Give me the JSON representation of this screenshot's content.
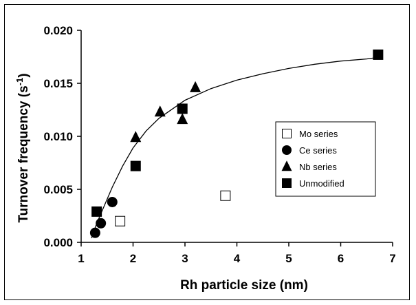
{
  "chart_data": {
    "type": "scatter",
    "title": "",
    "xlabel": "Rh particle size (nm)",
    "ylabel_main": "Turnover frequency (s",
    "ylabel_sup": "-1",
    "ylabel_close": ")",
    "xlim": [
      1,
      7
    ],
    "ylim": [
      0,
      0.02
    ],
    "x_ticks": [
      "1",
      "2",
      "3",
      "4",
      "5",
      "6",
      "7"
    ],
    "y_ticks": [
      "0.000",
      "0.005",
      "0.010",
      "0.015",
      "0.020"
    ],
    "grid": false,
    "legend_position": "right",
    "series": [
      {
        "name": "Mo series",
        "marker": "open-square",
        "points": [
          {
            "x": 1.75,
            "y": 0.002
          },
          {
            "x": 3.78,
            "y": 0.0044
          }
        ]
      },
      {
        "name": "Ce series",
        "marker": "filled-circle",
        "points": [
          {
            "x": 1.27,
            "y": 0.0009
          },
          {
            "x": 1.38,
            "y": 0.0018
          },
          {
            "x": 1.6,
            "y": 0.0038
          }
        ]
      },
      {
        "name": "Nb series",
        "marker": "filled-triangle",
        "points": [
          {
            "x": 2.05,
            "y": 0.0099
          },
          {
            "x": 2.52,
            "y": 0.0123
          },
          {
            "x": 2.95,
            "y": 0.0116
          },
          {
            "x": 3.2,
            "y": 0.0146
          }
        ]
      },
      {
        "name": "Unmodified",
        "marker": "filled-square",
        "points": [
          {
            "x": 1.3,
            "y": 0.0029
          },
          {
            "x": 2.05,
            "y": 0.0072
          },
          {
            "x": 2.95,
            "y": 0.0126
          },
          {
            "x": 6.72,
            "y": 0.0177
          }
        ]
      }
    ],
    "fit_curve": [
      {
        "x": 1.2,
        "y": 0.0004
      },
      {
        "x": 1.3,
        "y": 0.0018
      },
      {
        "x": 1.45,
        "y": 0.0035
      },
      {
        "x": 1.6,
        "y": 0.0052
      },
      {
        "x": 1.8,
        "y": 0.0072
      },
      {
        "x": 2.0,
        "y": 0.0089
      },
      {
        "x": 2.25,
        "y": 0.0105
      },
      {
        "x": 2.5,
        "y": 0.0117
      },
      {
        "x": 3.0,
        "y": 0.0134
      },
      {
        "x": 3.5,
        "y": 0.0145
      },
      {
        "x": 4.0,
        "y": 0.0153
      },
      {
        "x": 4.5,
        "y": 0.0159
      },
      {
        "x": 5.0,
        "y": 0.0164
      },
      {
        "x": 5.5,
        "y": 0.0168
      },
      {
        "x": 6.0,
        "y": 0.0171
      },
      {
        "x": 6.5,
        "y": 0.0173
      },
      {
        "x": 6.8,
        "y": 0.0175
      }
    ]
  }
}
